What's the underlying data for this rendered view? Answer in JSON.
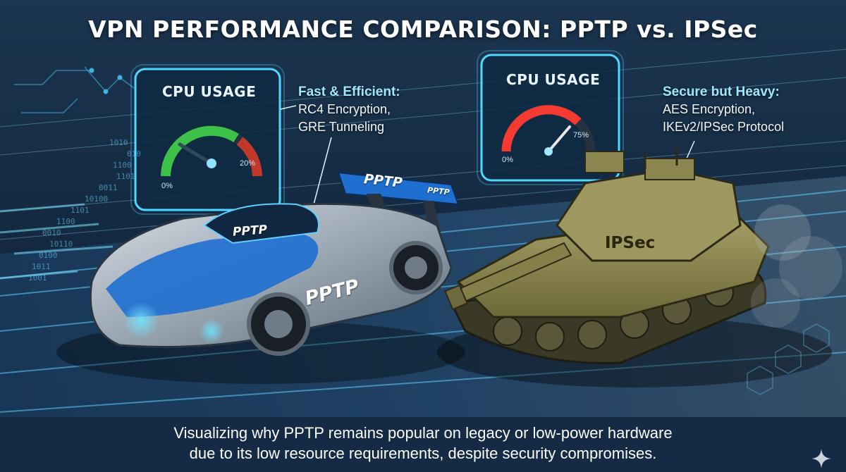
{
  "title": "VPN PERFORMANCE COMPARISON: PPTP vs. IPSec",
  "pptp": {
    "gauge_label": "CPU USAGE",
    "gauge_min": "0%",
    "gauge_value": "20%",
    "gauge_level": 0.2,
    "gauge_color": "#3fd24a",
    "note_heading": "Fast & Efficient:",
    "note_lines": [
      "RC4 Encryption,",
      "GRE Tunneling"
    ],
    "note_heading_color": "#9fe7ff",
    "vehicle_labels": {
      "wing": "PPTP",
      "wing_end": "PPTP",
      "hood": "PPTP",
      "door": "PPTP"
    }
  },
  "ipsec": {
    "gauge_label": "CPU USAGE",
    "gauge_min": "0%",
    "gauge_value": "75%",
    "gauge_level": 0.75,
    "gauge_color": "#ff3b30",
    "note_heading": "Secure but Heavy:",
    "note_lines": [
      "AES Encryption,",
      "IKEv2/IPSec Protocol"
    ],
    "note_heading_color": "#9fe7ff",
    "vehicle_label": "IPSec"
  },
  "binary_decoration": [
    "1010",
    "010",
    "1100",
    "1101",
    "0011",
    "10100",
    "1101",
    "1100",
    "0010",
    "10110",
    "0100",
    "1011",
    "1001"
  ],
  "caption_lines": [
    "Visualizing why PPTP remains popular on legacy or low-power hardware",
    "due to its low resource requirements, despite security compromises."
  ],
  "colors": {
    "background": "#0d1f33",
    "caption_bar": "#142a45",
    "neon": "#37c8ff",
    "car_blue": "#1f6fd1",
    "tank_olive": "#8c8650"
  }
}
